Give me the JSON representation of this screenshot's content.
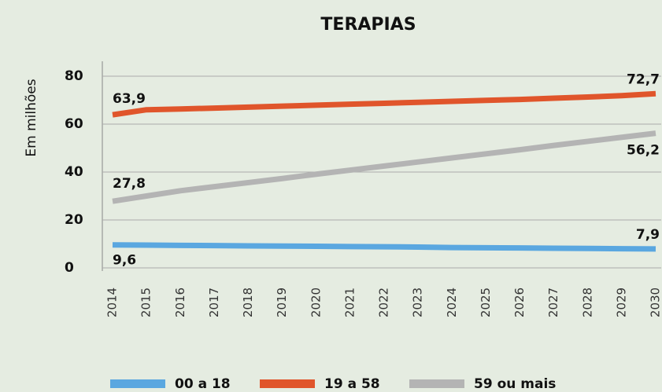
{
  "chart_data": {
    "type": "line",
    "title": "TERAPIAS",
    "y_label": "Em milhões",
    "categories": [
      "2014",
      "2015",
      "2016",
      "2017",
      "2018",
      "2019",
      "2020",
      "2021",
      "2022",
      "2023",
      "2024",
      "2025",
      "2026",
      "2027",
      "2028",
      "2029",
      "2030"
    ],
    "series": [
      {
        "name": "00 a 18",
        "color": "#5aa7e0",
        "values": [
          9.6,
          9.5,
          9.4,
          9.3,
          9.2,
          9.1,
          9.0,
          8.9,
          8.8,
          8.7,
          8.5,
          8.4,
          8.3,
          8.2,
          8.1,
          8.0,
          7.9
        ],
        "value_labels": [
          "9,6",
          null,
          null,
          null,
          null,
          null,
          null,
          null,
          null,
          null,
          null,
          null,
          null,
          null,
          null,
          null,
          "7,9"
        ]
      },
      {
        "name": "19 a 58",
        "color": "#e0552b",
        "values": [
          63.9,
          66.0,
          66.3,
          66.7,
          67.1,
          67.5,
          67.9,
          68.3,
          68.7,
          69.1,
          69.5,
          69.9,
          70.3,
          70.8,
          71.3,
          71.9,
          72.7
        ],
        "value_labels": [
          "63,9",
          null,
          null,
          null,
          null,
          null,
          null,
          null,
          null,
          null,
          null,
          null,
          null,
          null,
          null,
          null,
          "72,7"
        ]
      },
      {
        "name": "59 ou mais",
        "color": "#b4b4b4",
        "values": [
          27.8,
          30.0,
          32.2,
          33.9,
          35.6,
          37.3,
          39.1,
          40.8,
          42.5,
          44.2,
          45.9,
          47.6,
          49.3,
          51.1,
          52.8,
          54.5,
          56.2
        ],
        "value_labels": [
          "27,8",
          null,
          null,
          null,
          null,
          null,
          null,
          null,
          null,
          null,
          null,
          null,
          null,
          null,
          null,
          null,
          "56,2"
        ]
      }
    ],
    "ylim": [
      0,
      80
    ],
    "yticks": [
      0,
      20,
      40,
      60,
      80
    ],
    "grid": true
  }
}
